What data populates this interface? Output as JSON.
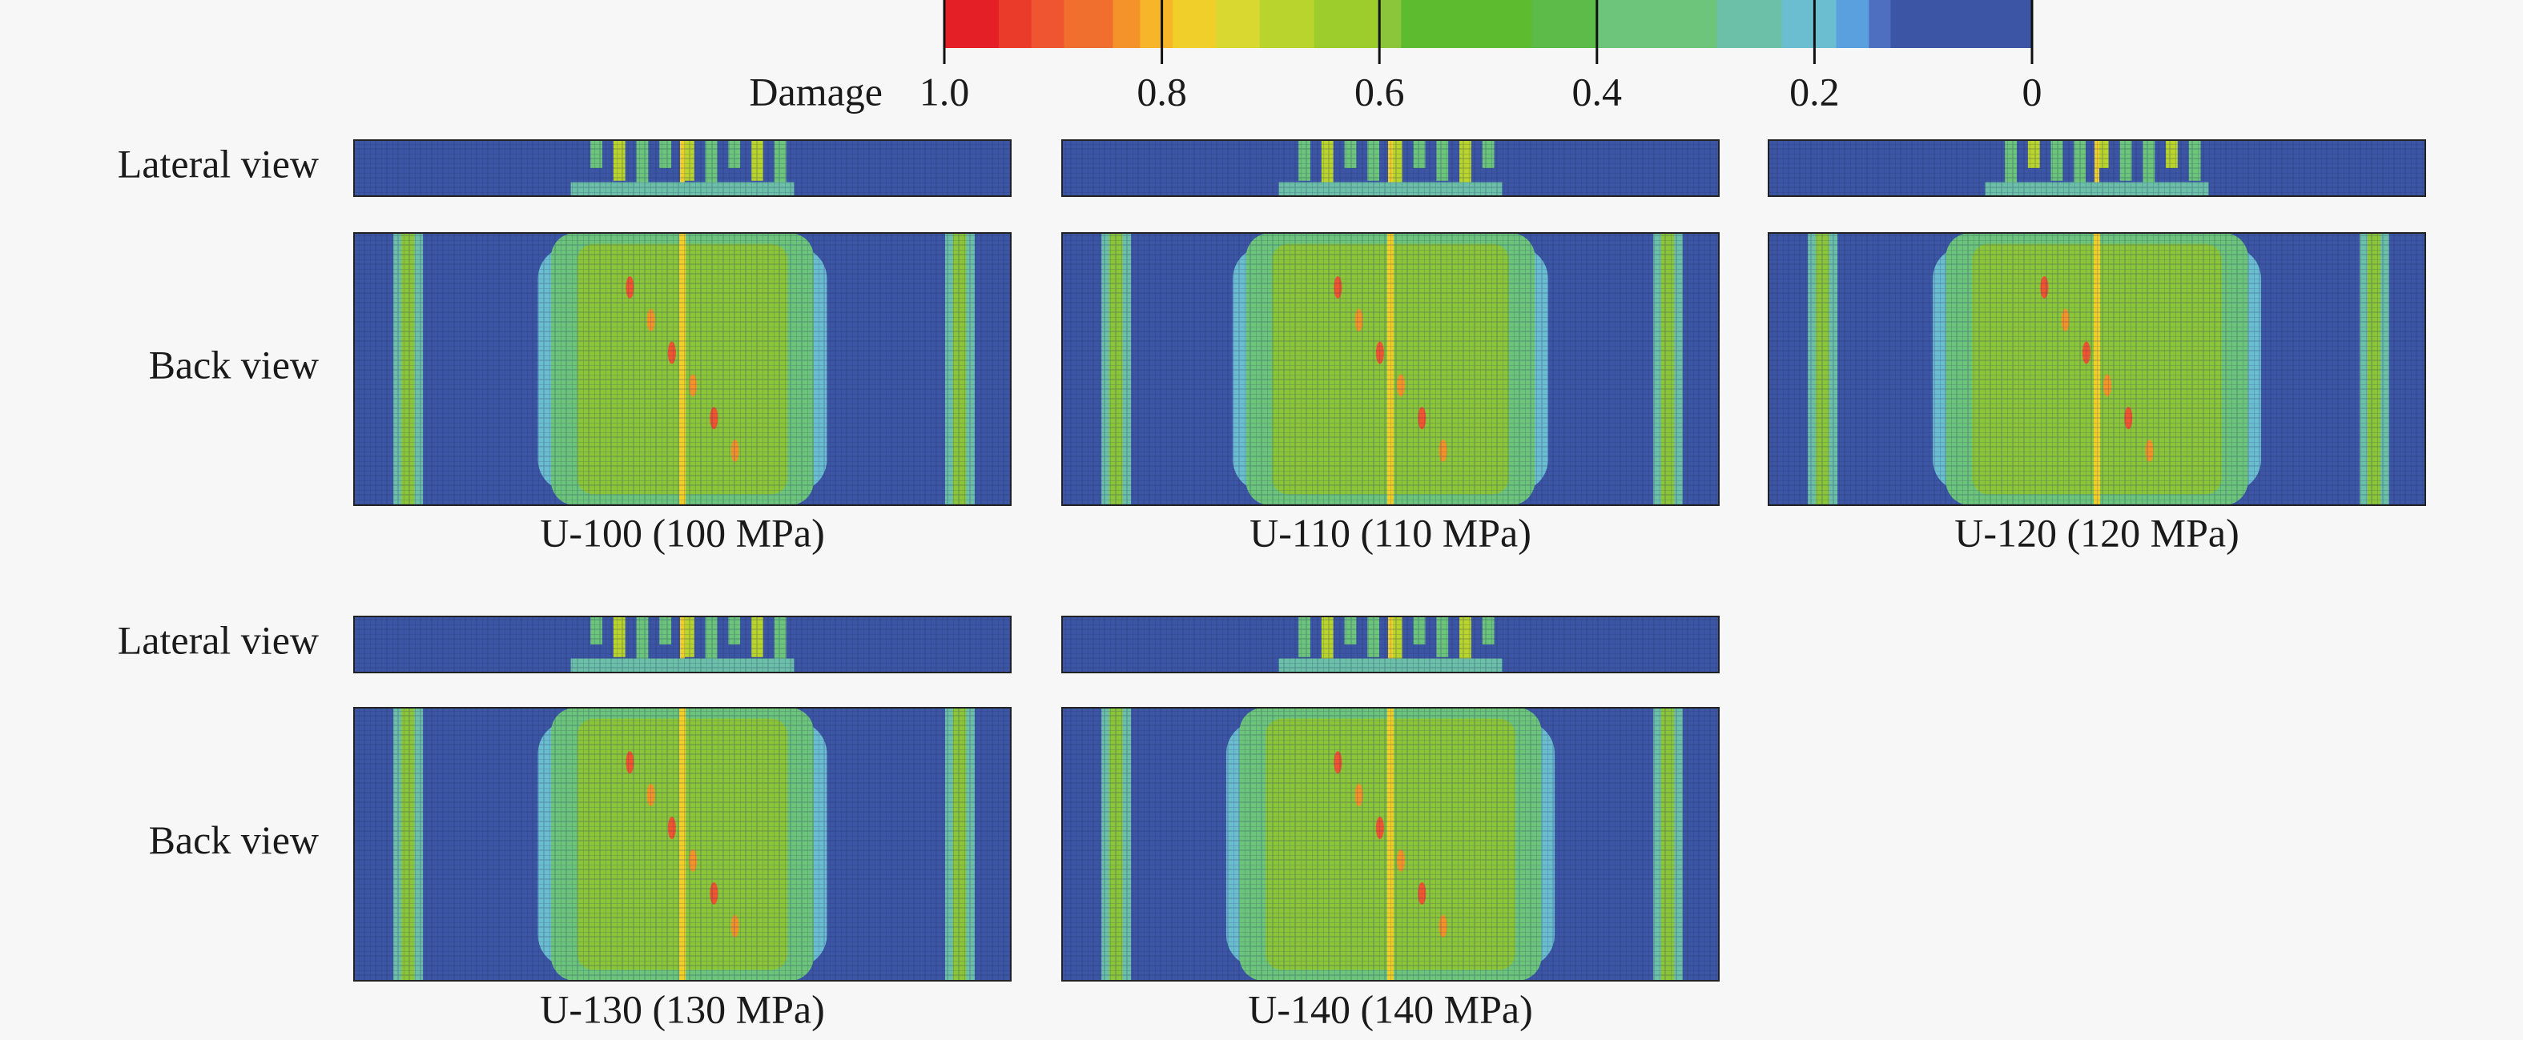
{
  "colorbar": {
    "label": "Damage",
    "lim": [
      1,
      0
    ],
    "ticks": [
      {
        "value": 1,
        "label": "1.0"
      },
      {
        "value": 0.8,
        "label": "0.8"
      },
      {
        "value": 0.6,
        "label": "0.6"
      },
      {
        "value": 0.4,
        "label": "0.4"
      },
      {
        "value": 0.2,
        "label": "0.2"
      },
      0
    ]
  },
  "rows": [
    {
      "lateral_label": "Lateral view",
      "back_label": "Back view",
      "panels": [
        "U-100 (100 MPa)",
        "U-110 (110 MPa)",
        "U-120 (120 MPa)"
      ]
    },
    {
      "lateral_label": "Lateral view",
      "back_label": "Back view",
      "panels": [
        "U-130 (130 MPa)",
        "U-140 (140 MPa)"
      ]
    }
  ]
}
